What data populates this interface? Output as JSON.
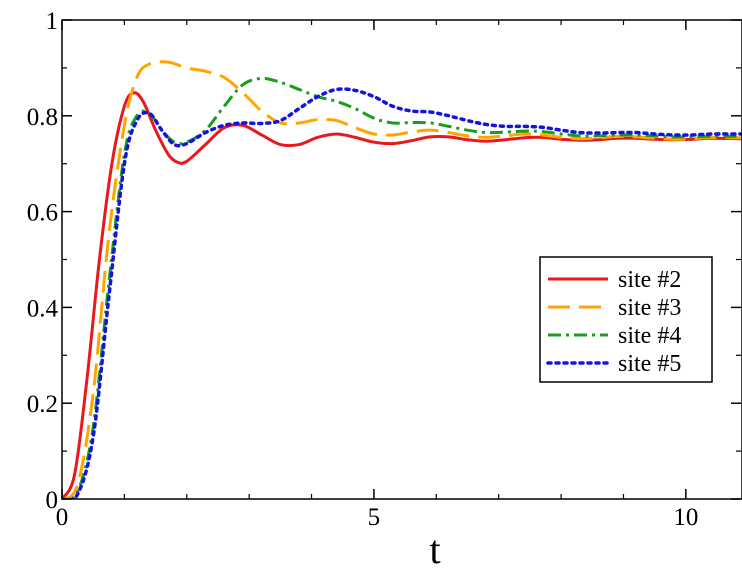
{
  "chart_data": {
    "type": "line",
    "title": "",
    "xlabel": "t",
    "ylabel": "",
    "xlim": [
      0,
      10.9
    ],
    "ylim": [
      0,
      1
    ],
    "x_ticks": [
      0,
      5,
      10
    ],
    "x_tick_labels": [
      "0",
      "5",
      "10"
    ],
    "y_ticks": [
      0,
      0.2,
      0.4,
      0.6,
      0.8,
      1
    ],
    "y_tick_labels": [
      "0",
      "0.2",
      "0.4",
      "0.6",
      "0.8",
      "1"
    ],
    "grid": false,
    "legend_position": "right",
    "series": [
      {
        "name": "site #2",
        "color": "#e8181d",
        "dash": "solid",
        "points": [
          [
            0,
            0
          ],
          [
            0.2,
            0.05
          ],
          [
            0.4,
            0.25
          ],
          [
            0.6,
            0.5
          ],
          [
            0.8,
            0.7
          ],
          [
            1.0,
            0.82
          ],
          [
            1.15,
            0.848
          ],
          [
            1.3,
            0.83
          ],
          [
            1.5,
            0.77
          ],
          [
            1.7,
            0.72
          ],
          [
            1.85,
            0.703
          ],
          [
            2.0,
            0.705
          ],
          [
            2.3,
            0.74
          ],
          [
            2.6,
            0.775
          ],
          [
            2.9,
            0.78
          ],
          [
            3.2,
            0.76
          ],
          [
            3.5,
            0.74
          ],
          [
            3.8,
            0.74
          ],
          [
            4.1,
            0.755
          ],
          [
            4.4,
            0.762
          ],
          [
            4.7,
            0.755
          ],
          [
            5.0,
            0.745
          ],
          [
            5.3,
            0.742
          ],
          [
            5.6,
            0.748
          ],
          [
            5.9,
            0.756
          ],
          [
            6.2,
            0.756
          ],
          [
            6.5,
            0.75
          ],
          [
            6.8,
            0.747
          ],
          [
            7.1,
            0.75
          ],
          [
            7.4,
            0.754
          ],
          [
            7.7,
            0.755
          ],
          [
            8.0,
            0.751
          ],
          [
            8.3,
            0.749
          ],
          [
            8.6,
            0.75
          ],
          [
            8.9,
            0.753
          ],
          [
            9.2,
            0.753
          ],
          [
            9.5,
            0.751
          ],
          [
            9.8,
            0.75
          ],
          [
            10.1,
            0.751
          ],
          [
            10.4,
            0.753
          ],
          [
            10.9,
            0.752
          ]
        ]
      },
      {
        "name": "site #3",
        "color": "#ffa500",
        "dash": "long-dash",
        "points": [
          [
            0,
            0
          ],
          [
            0.25,
            0.03
          ],
          [
            0.5,
            0.22
          ],
          [
            0.75,
            0.55
          ],
          [
            1.0,
            0.78
          ],
          [
            1.2,
            0.88
          ],
          [
            1.4,
            0.908
          ],
          [
            1.7,
            0.912
          ],
          [
            2.0,
            0.9
          ],
          [
            2.3,
            0.893
          ],
          [
            2.6,
            0.88
          ],
          [
            2.9,
            0.848
          ],
          [
            3.2,
            0.81
          ],
          [
            3.5,
            0.785
          ],
          [
            3.8,
            0.785
          ],
          [
            4.1,
            0.792
          ],
          [
            4.4,
            0.79
          ],
          [
            4.7,
            0.775
          ],
          [
            5.0,
            0.762
          ],
          [
            5.3,
            0.76
          ],
          [
            5.6,
            0.766
          ],
          [
            5.9,
            0.77
          ],
          [
            6.2,
            0.765
          ],
          [
            6.5,
            0.758
          ],
          [
            6.8,
            0.755
          ],
          [
            7.1,
            0.758
          ],
          [
            7.4,
            0.762
          ],
          [
            7.7,
            0.76
          ],
          [
            8.0,
            0.755
          ],
          [
            8.3,
            0.752
          ],
          [
            8.6,
            0.754
          ],
          [
            8.9,
            0.757
          ],
          [
            9.2,
            0.756
          ],
          [
            9.5,
            0.753
          ],
          [
            9.8,
            0.751
          ],
          [
            10.1,
            0.752
          ],
          [
            10.4,
            0.755
          ],
          [
            10.9,
            0.754
          ]
        ]
      },
      {
        "name": "site #4",
        "color": "#1a9d1a",
        "dash": "dash-dot",
        "points": [
          [
            0,
            0
          ],
          [
            0.25,
            0.015
          ],
          [
            0.5,
            0.15
          ],
          [
            0.75,
            0.45
          ],
          [
            1.0,
            0.72
          ],
          [
            1.2,
            0.8
          ],
          [
            1.4,
            0.805
          ],
          [
            1.6,
            0.77
          ],
          [
            1.8,
            0.745
          ],
          [
            2.0,
            0.745
          ],
          [
            2.3,
            0.77
          ],
          [
            2.6,
            0.82
          ],
          [
            2.9,
            0.865
          ],
          [
            3.2,
            0.878
          ],
          [
            3.5,
            0.87
          ],
          [
            3.8,
            0.855
          ],
          [
            4.1,
            0.84
          ],
          [
            4.4,
            0.83
          ],
          [
            4.7,
            0.815
          ],
          [
            5.0,
            0.795
          ],
          [
            5.3,
            0.785
          ],
          [
            5.6,
            0.786
          ],
          [
            5.9,
            0.785
          ],
          [
            6.2,
            0.778
          ],
          [
            6.5,
            0.77
          ],
          [
            6.8,
            0.765
          ],
          [
            7.1,
            0.766
          ],
          [
            7.4,
            0.768
          ],
          [
            7.7,
            0.767
          ],
          [
            8.0,
            0.762
          ],
          [
            8.3,
            0.758
          ],
          [
            8.6,
            0.758
          ],
          [
            8.9,
            0.76
          ],
          [
            9.2,
            0.76
          ],
          [
            9.5,
            0.758
          ],
          [
            9.8,
            0.756
          ],
          [
            10.1,
            0.756
          ],
          [
            10.4,
            0.757
          ],
          [
            10.9,
            0.757
          ]
        ]
      },
      {
        "name": "site #5",
        "color": "#1414dc",
        "dash": "dotted",
        "points": [
          [
            0,
            0
          ],
          [
            0.25,
            0.01
          ],
          [
            0.5,
            0.13
          ],
          [
            0.75,
            0.42
          ],
          [
            1.0,
            0.7
          ],
          [
            1.2,
            0.79
          ],
          [
            1.4,
            0.805
          ],
          [
            1.6,
            0.77
          ],
          [
            1.8,
            0.74
          ],
          [
            2.0,
            0.742
          ],
          [
            2.3,
            0.765
          ],
          [
            2.6,
            0.78
          ],
          [
            2.9,
            0.785
          ],
          [
            3.2,
            0.784
          ],
          [
            3.5,
            0.79
          ],
          [
            3.8,
            0.815
          ],
          [
            4.1,
            0.84
          ],
          [
            4.4,
            0.855
          ],
          [
            4.7,
            0.853
          ],
          [
            5.0,
            0.84
          ],
          [
            5.3,
            0.82
          ],
          [
            5.6,
            0.81
          ],
          [
            5.9,
            0.808
          ],
          [
            6.2,
            0.8
          ],
          [
            6.5,
            0.79
          ],
          [
            6.8,
            0.782
          ],
          [
            7.1,
            0.778
          ],
          [
            7.4,
            0.778
          ],
          [
            7.7,
            0.776
          ],
          [
            8.0,
            0.77
          ],
          [
            8.3,
            0.765
          ],
          [
            8.6,
            0.764
          ],
          [
            8.9,
            0.765
          ],
          [
            9.2,
            0.765
          ],
          [
            9.5,
            0.762
          ],
          [
            9.8,
            0.76
          ],
          [
            10.1,
            0.76
          ],
          [
            10.4,
            0.762
          ],
          [
            10.9,
            0.762
          ]
        ]
      }
    ]
  }
}
